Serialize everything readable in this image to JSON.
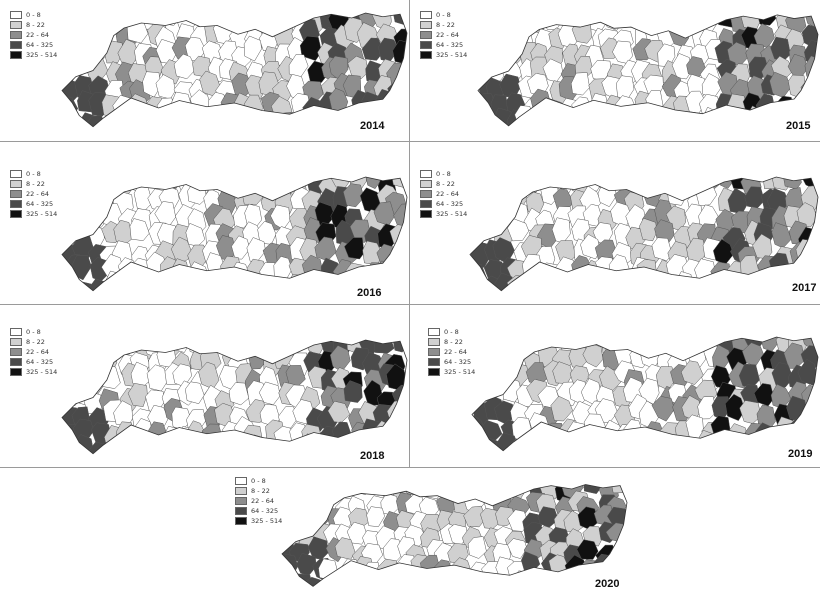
{
  "legend": {
    "classes": [
      {
        "label": "0 - 8",
        "color": "#ffffff"
      },
      {
        "label": "8 - 22",
        "color": "#d0d0d0"
      },
      {
        "label": "22 - 64",
        "color": "#8e8e8e"
      },
      {
        "label": "64 - 325",
        "color": "#4a4a4a"
      },
      {
        "label": "325 - 514",
        "color": "#111111"
      }
    ]
  },
  "panels": [
    {
      "year": "2014"
    },
    {
      "year": "2015"
    },
    {
      "year": "2016"
    },
    {
      "year": "2017"
    },
    {
      "year": "2018"
    },
    {
      "year": "2019"
    },
    {
      "year": "2020"
    }
  ]
}
